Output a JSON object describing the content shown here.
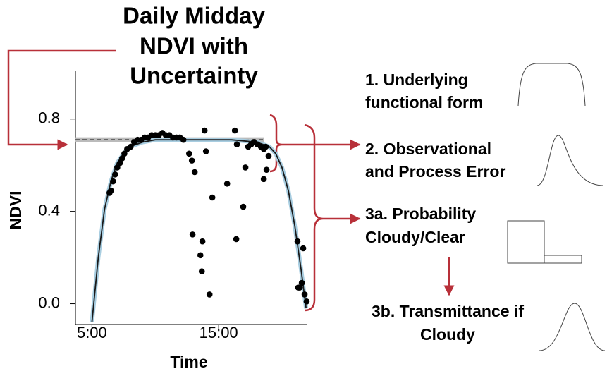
{
  "chart_data": {
    "type": "scatter",
    "title": [
      "Daily Midday",
      "NDVI with",
      "Uncertainty"
    ],
    "x_label": "Time",
    "y_label": "NDVI",
    "xlim": [
      3.7,
      22
    ],
    "ylim": [
      -0.09,
      1.01
    ],
    "xticks": [
      {
        "value": 5,
        "label": "5:00"
      },
      {
        "value": 15,
        "label": "15:00"
      }
    ],
    "yticks": [
      {
        "value": 0,
        "label": "0.0"
      },
      0.4,
      0.8
    ],
    "points": {
      "color": "#000000",
      "x": [
        6.39,
        6.5,
        6.67,
        6.83,
        7.0,
        7.22,
        7.39,
        7.56,
        7.78,
        8.06,
        8.33,
        8.61,
        8.89,
        9.17,
        9.44,
        9.72,
        10.0,
        10.28,
        10.56,
        10.83,
        11.11,
        11.39,
        11.67,
        11.94,
        12.22,
        12.67,
        12.89,
        13.11,
        12.94,
        13.89,
        14.0,
        13.72,
        13.56,
        13.67,
        14.28,
        14.5,
        15.67,
        16.28,
        16.39,
        16.44,
        16.94,
        17.11,
        17.33,
        17.56,
        17.78,
        18.06,
        18.33,
        18.56,
        18.72,
        18.56,
        18.78,
        18.94,
        21.22,
        21.67,
        21.39,
        21.56,
        21.78,
        21.94,
        21.28
      ],
      "values": [
        0.48,
        0.49,
        0.53,
        0.56,
        0.59,
        0.61,
        0.63,
        0.65,
        0.67,
        0.68,
        0.7,
        0.71,
        0.71,
        0.72,
        0.72,
        0.73,
        0.73,
        0.73,
        0.74,
        0.73,
        0.73,
        0.72,
        0.72,
        0.72,
        0.71,
        0.65,
        0.62,
        0.57,
        0.3,
        0.75,
        0.66,
        0.27,
        0.21,
        0.14,
        0.04,
        0.46,
        0.52,
        0.75,
        0.28,
        0.69,
        0.42,
        0.59,
        0.68,
        0.69,
        0.7,
        0.69,
        0.68,
        0.67,
        0.68,
        0.54,
        0.58,
        0.64,
        0.27,
        0.24,
        0.07,
        0.09,
        0.04,
        0.01,
        0.07
      ]
    },
    "curve": {
      "color": "#1a1a1a",
      "band_color": "#a8cde0",
      "x": [
        5.0,
        5.5,
        6,
        6.5,
        7,
        7.5,
        8,
        9,
        10,
        12,
        14,
        16,
        18,
        19,
        19.5,
        20,
        20.5,
        21,
        21.5,
        21.9
      ],
      "values": [
        -0.08,
        0.2,
        0.41,
        0.53,
        0.61,
        0.65,
        0.68,
        0.7,
        0.71,
        0.71,
        0.71,
        0.71,
        0.7,
        0.68,
        0.65,
        0.59,
        0.49,
        0.34,
        0.15,
        -0.02
      ]
    },
    "reference_line": {
      "y": 0.71,
      "x": [
        3.7,
        18.6
      ],
      "color": "#333333",
      "band_color": "#bbbbbb"
    },
    "annotations": [
      {
        "lines": [
          "1. Underlying",
          "functional form"
        ]
      },
      {
        "lines": [
          "2. Observational",
          "and Process Error"
        ]
      },
      {
        "lines": [
          "3a. Probability",
          "Cloudy/Clear"
        ]
      },
      {
        "lines": [
          "3b. Transmittance if",
          "Cloudy"
        ]
      }
    ]
  }
}
